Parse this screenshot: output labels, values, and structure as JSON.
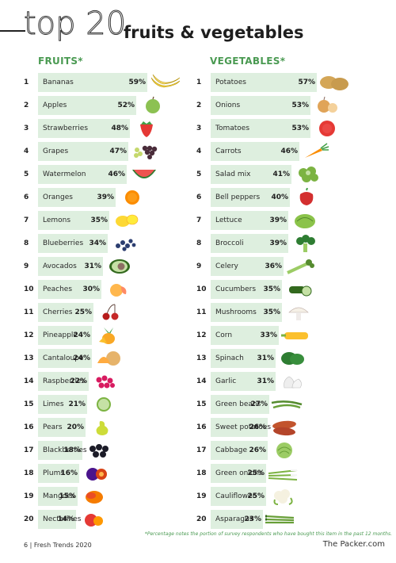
{
  "title": {
    "number_part": "top 20",
    "main": "fruits & vegetables"
  },
  "chart_data": [
    {
      "type": "bar",
      "title": "FRUITS*",
      "unit": "%",
      "categories": [
        "Bananas",
        "Apples",
        "Strawberries",
        "Grapes",
        "Watermelon",
        "Oranges",
        "Lemons",
        "Blueberries",
        "Avocados",
        "Peaches",
        "Cherries",
        "Pineapple",
        "Cantaloupe",
        "Raspberries",
        "Limes",
        "Pears",
        "Blackberries",
        "Plums",
        "Mangoes",
        "Nectarines"
      ],
      "ranks": [
        "1",
        "2",
        "3",
        "4",
        "5",
        "6",
        "7",
        "8",
        "9",
        "10",
        "11",
        "12",
        "13",
        "14",
        "15",
        "16",
        "17",
        "18",
        "19",
        "20"
      ],
      "values": [
        59,
        52,
        48,
        47,
        46,
        39,
        35,
        34,
        31,
        30,
        25,
        24,
        24,
        22,
        21,
        20,
        18,
        16,
        15,
        14
      ],
      "labels": [
        "59%",
        "52%",
        "48%",
        "47%",
        "46%",
        "39%",
        "35%",
        "34%",
        "31%",
        "30%",
        "25%",
        "24%",
        "24%",
        "22%",
        "21%",
        "20%",
        "18%",
        "16%",
        "15%",
        "14%"
      ],
      "icons": [
        "banana-icon",
        "apple-icon",
        "strawberry-icon",
        "grapes-icon",
        "watermelon-icon",
        "orange-icon",
        "lemon-icon",
        "blueberries-icon",
        "avocado-icon",
        "peach-icon",
        "cherries-icon",
        "pineapple-icon",
        "cantaloupe-icon",
        "raspberries-icon",
        "lime-icon",
        "pear-icon",
        "blackberries-icon",
        "plum-icon",
        "mango-icon",
        "nectarine-icon"
      ]
    },
    {
      "type": "bar",
      "title": "VEGETABLES*",
      "unit": "%",
      "categories": [
        "Potatoes",
        "Onions",
        "Tomatoes",
        "Carrots",
        "Salad mix",
        "Bell peppers",
        "Lettuce",
        "Broccoli",
        "Celery",
        "Cucumbers",
        "Mushrooms",
        "Corn",
        "Spinach",
        "Garlic",
        "Green beans",
        "Sweet potatoes",
        "Cabbage",
        "Green onions",
        "Cauliflower",
        "Asparagus"
      ],
      "ranks": [
        "1",
        "2",
        "3",
        "4",
        "5",
        "6",
        "7",
        "8",
        "9",
        "10",
        "11",
        "12",
        "13",
        "14",
        "15",
        "16",
        "17",
        "18",
        "19",
        "20"
      ],
      "values": [
        57,
        53,
        53,
        46,
        41,
        40,
        39,
        39,
        36,
        35,
        35,
        33,
        31,
        31,
        27,
        26,
        26,
        25,
        25,
        23
      ],
      "labels": [
        "57%",
        "53%",
        "53%",
        "46%",
        "41%",
        "40%",
        "39%",
        "39%",
        "36%",
        "35%",
        "35%",
        "33%",
        "31%",
        "31%",
        "27%",
        "26%",
        "26%",
        "25%",
        "25%",
        "23%"
      ],
      "icons": [
        "potato-icon",
        "onion-icon",
        "tomato-icon",
        "carrot-icon",
        "salad-mix-icon",
        "bell-pepper-icon",
        "lettuce-icon",
        "broccoli-icon",
        "celery-icon",
        "cucumber-icon",
        "mushroom-icon",
        "corn-icon",
        "spinach-icon",
        "garlic-icon",
        "green-beans-icon",
        "sweet-potato-icon",
        "cabbage-icon",
        "green-onion-icon",
        "cauliflower-icon",
        "asparagus-icon"
      ]
    }
  ],
  "footnote": "*Percentage notes the portion of survey respondents who have bought this item in the past 12 months.",
  "footer": {
    "left": "6  |  Fresh Trends 2020",
    "right": "The Packer.com"
  },
  "colors": {
    "bar": "#deefdf",
    "heading": "#4a9a52",
    "text": "#222222"
  }
}
